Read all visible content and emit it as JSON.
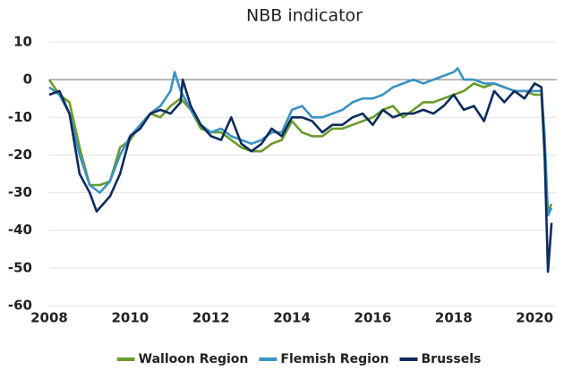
{
  "chart_data": {
    "type": "line",
    "subtitle": "NBB indicator",
    "xlim": [
      2008,
      2020.55
    ],
    "xticks": [
      2008,
      2010,
      2012,
      2014,
      2016,
      2018,
      2020
    ],
    "ylim": [
      -60,
      10
    ],
    "yticks": [
      -60,
      -50,
      -40,
      -30,
      -20,
      -10,
      0,
      10
    ],
    "grid": true,
    "legend": "bottom",
    "series": [
      {
        "name": "Walloon Region",
        "color": "#6a9c2a",
        "x": [
          2008.0,
          2008.25,
          2008.5,
          2008.75,
          2009.0,
          2009.25,
          2009.5,
          2009.75,
          2010.0,
          2010.25,
          2010.5,
          2010.75,
          2011.0,
          2011.25,
          2011.5,
          2011.75,
          2012.0,
          2012.25,
          2012.5,
          2012.75,
          2013.0,
          2013.25,
          2013.5,
          2013.75,
          2014.0,
          2014.25,
          2014.5,
          2014.75,
          2015.0,
          2015.25,
          2015.5,
          2015.75,
          2016.0,
          2016.25,
          2016.5,
          2016.75,
          2017.0,
          2017.25,
          2017.5,
          2017.75,
          2018.0,
          2018.25,
          2018.5,
          2018.75,
          2019.0,
          2019.25,
          2019.5,
          2019.75,
          2020.0,
          2020.17,
          2020.25,
          2020.33,
          2020.42
        ],
        "values": [
          0,
          -4,
          -6,
          -18,
          -28,
          -28,
          -27,
          -18,
          -16,
          -12,
          -9,
          -10,
          -7,
          -5,
          -8,
          -13,
          -14,
          -14,
          -16,
          -18,
          -19,
          -19,
          -17,
          -16,
          -11,
          -14,
          -15,
          -15,
          -13,
          -13,
          -12,
          -11,
          -10,
          -8,
          -7,
          -10,
          -8,
          -6,
          -6,
          -5,
          -4,
          -3,
          -1,
          -2,
          -1,
          -2,
          -3,
          -3,
          -4,
          -4,
          -20,
          -35,
          -33
        ]
      },
      {
        "name": "Flemish Region",
        "color": "#3a93c3",
        "x": [
          2008.0,
          2008.25,
          2008.5,
          2008.75,
          2009.0,
          2009.25,
          2009.5,
          2009.75,
          2010.0,
          2010.25,
          2010.5,
          2010.75,
          2011.0,
          2011.1,
          2011.25,
          2011.5,
          2011.75,
          2012.0,
          2012.25,
          2012.5,
          2012.75,
          2013.0,
          2013.25,
          2013.5,
          2013.75,
          2014.0,
          2014.25,
          2014.5,
          2014.75,
          2015.0,
          2015.25,
          2015.5,
          2015.75,
          2016.0,
          2016.25,
          2016.5,
          2016.75,
          2017.0,
          2017.25,
          2017.5,
          2017.75,
          2018.0,
          2018.1,
          2018.25,
          2018.5,
          2018.75,
          2019.0,
          2019.25,
          2019.5,
          2019.75,
          2020.0,
          2020.17,
          2020.25,
          2020.33,
          2020.42
        ],
        "values": [
          -2,
          -4,
          -9,
          -20,
          -28,
          -30,
          -27,
          -20,
          -15,
          -12,
          -9,
          -7,
          -3,
          2,
          -3,
          -8,
          -12,
          -14,
          -13,
          -15,
          -16,
          -17,
          -16,
          -14,
          -14,
          -8,
          -7,
          -10,
          -10,
          -9,
          -8,
          -6,
          -5,
          -5,
          -4,
          -2,
          -1,
          0,
          -1,
          0,
          1,
          2,
          3,
          0,
          0,
          -1,
          -1,
          -2,
          -3,
          -3,
          -3,
          -3,
          -15,
          -36,
          -34
        ]
      },
      {
        "name": "Brussels",
        "color": "#0d2b5e",
        "x": [
          2008.0,
          2008.25,
          2008.5,
          2008.75,
          2009.0,
          2009.17,
          2009.5,
          2009.75,
          2010.0,
          2010.25,
          2010.5,
          2010.75,
          2011.0,
          2011.25,
          2011.3,
          2011.5,
          2011.75,
          2012.0,
          2012.25,
          2012.5,
          2012.75,
          2013.0,
          2013.25,
          2013.5,
          2013.75,
          2014.0,
          2014.25,
          2014.5,
          2014.75,
          2015.0,
          2015.25,
          2015.5,
          2015.75,
          2016.0,
          2016.25,
          2016.5,
          2016.75,
          2017.0,
          2017.25,
          2017.5,
          2017.75,
          2018.0,
          2018.25,
          2018.5,
          2018.75,
          2019.0,
          2019.25,
          2019.5,
          2019.75,
          2020.0,
          2020.17,
          2020.25,
          2020.33,
          2020.42
        ],
        "values": [
          -4,
          -3,
          -9,
          -25,
          -30,
          -35,
          -31,
          -25,
          -15,
          -13,
          -9,
          -8,
          -9,
          -6,
          0,
          -7,
          -12,
          -15,
          -16,
          -10,
          -17,
          -19,
          -17,
          -13,
          -15,
          -10,
          -10,
          -11,
          -14,
          -12,
          -12,
          -10,
          -9,
          -12,
          -8,
          -10,
          -9,
          -9,
          -8,
          -9,
          -7,
          -4,
          -8,
          -7,
          -11,
          -3,
          -6,
          -3,
          -5,
          -1,
          -2,
          -20,
          -51,
          -38
        ]
      }
    ]
  }
}
